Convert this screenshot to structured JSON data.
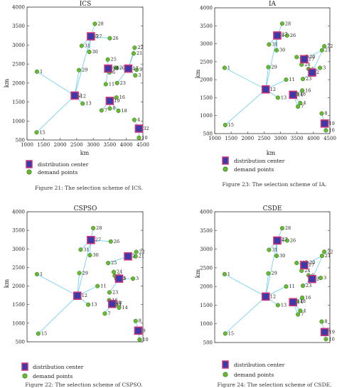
{
  "legend": {
    "dc_label": "distribution center",
    "dp_label": "demand points"
  },
  "colors": {
    "dc_border": "#cc3377",
    "dc_fill": "#3a3aa8",
    "dp_fill": "#66bb33",
    "dp_border": "#2e6b12",
    "link": "#66ccee"
  },
  "captions": {
    "p0": "Figure 21: The selection scheme of ICS.",
    "p1": "Figure 23: The selection scheme of IA.",
    "p2": "Figure 22: The selection scheme of CSPSO.",
    "p3": "Figure 24: The selection scheme of CSDE."
  },
  "chart_data": [
    {
      "type": "scatter",
      "title": "ICS",
      "xlabel": "km",
      "ylabel": "km",
      "xlim": [
        1000,
        4500
      ],
      "ylim": [
        500,
        4000
      ],
      "xticks": [
        1000,
        1500,
        2000,
        2500,
        3000,
        3500,
        4000,
        4500
      ],
      "yticks": [
        500,
        1000,
        1500,
        2000,
        2500,
        3000,
        3500,
        4000
      ],
      "points": [
        {
          "id": "1",
          "x": 1300,
          "y": 2300
        },
        {
          "id": "3",
          "x": 4270,
          "y": 2200
        },
        {
          "id": "4",
          "x": 4240,
          "y": 1030
        },
        {
          "id": "6",
          "x": 3490,
          "y": 2280
        },
        {
          "id": "7",
          "x": 3250,
          "y": 1280
        },
        {
          "id": "8",
          "x": 3500,
          "y": 1330
        },
        {
          "id": "9",
          "x": 4310,
          "y": 2350
        },
        {
          "id": "10",
          "x": 4380,
          "y": 560
        },
        {
          "id": "11",
          "x": 3380,
          "y": 1970
        },
        {
          "id": "12",
          "x": 2520,
          "y": 1650
        },
        {
          "id": "13",
          "x": 2680,
          "y": 1460
        },
        {
          "id": "15",
          "x": 1290,
          "y": 700
        },
        {
          "id": "16",
          "x": 3700,
          "y": 1620
        },
        {
          "id": "18",
          "x": 3760,
          "y": 1270
        },
        {
          "id": "20",
          "x": 3700,
          "y": 2400
        },
        {
          "id": "21",
          "x": 4220,
          "y": 2780
        },
        {
          "id": "22",
          "x": 4250,
          "y": 2930
        },
        {
          "id": "23",
          "x": 3720,
          "y": 2000
        },
        {
          "id": "24",
          "x": 3520,
          "y": 2400
        },
        {
          "id": "25",
          "x": 3440,
          "y": 2620
        },
        {
          "id": "26",
          "x": 3500,
          "y": 3180
        },
        {
          "id": "27",
          "x": 3000,
          "y": 3220
        },
        {
          "id": "28",
          "x": 3050,
          "y": 3560
        },
        {
          "id": "29",
          "x": 2570,
          "y": 2340
        },
        {
          "id": "30",
          "x": 2880,
          "y": 2820
        },
        {
          "id": "31",
          "x": 2650,
          "y": 2980
        }
      ],
      "centers": [
        {
          "id": "2",
          "x": 2440,
          "y": 1670
        },
        {
          "id": "5",
          "x": 2930,
          "y": 3230
        },
        {
          "id": "14",
          "x": 3450,
          "y": 2380
        },
        {
          "id": "17",
          "x": 4060,
          "y": 2380
        },
        {
          "id": "19",
          "x": 3500,
          "y": 1530
        },
        {
          "id": "32",
          "x": 4380,
          "y": 800
        }
      ],
      "links": [
        {
          "from": "2",
          "to": "1"
        },
        {
          "from": "2",
          "to": "15"
        },
        {
          "from": "2",
          "to": "12"
        },
        {
          "from": "2",
          "to": "13"
        },
        {
          "from": "2",
          "to": "29"
        },
        {
          "from": "2",
          "to": "5"
        },
        {
          "from": "5",
          "to": "31"
        },
        {
          "from": "5",
          "to": "30"
        },
        {
          "from": "5",
          "to": "28"
        },
        {
          "from": "5",
          "to": "26"
        },
        {
          "from": "14",
          "to": "25"
        },
        {
          "from": "14",
          "to": "11"
        },
        {
          "from": "14",
          "to": "24"
        },
        {
          "from": "14",
          "to": "6"
        },
        {
          "from": "17",
          "to": "21"
        },
        {
          "from": "17",
          "to": "22"
        },
        {
          "from": "17",
          "to": "3"
        },
        {
          "from": "17",
          "to": "9"
        },
        {
          "from": "17",
          "to": "20"
        },
        {
          "from": "17",
          "to": "23"
        },
        {
          "from": "19",
          "to": "7"
        },
        {
          "from": "19",
          "to": "8"
        },
        {
          "from": "19",
          "to": "16"
        },
        {
          "from": "19",
          "to": "18"
        },
        {
          "from": "32",
          "to": "4"
        },
        {
          "from": "32",
          "to": "10"
        }
      ]
    },
    {
      "type": "scatter",
      "title": "IA",
      "xlabel": "km",
      "ylabel": "km",
      "xlim": [
        1000,
        4500
      ],
      "ylim": [
        500,
        4000
      ],
      "xticks": [
        1000,
        1500,
        2000,
        2500,
        3000,
        3500,
        4000,
        4500
      ],
      "yticks": [
        500,
        1000,
        1500,
        2000,
        2500,
        3000,
        3500,
        4000
      ],
      "points": [
        {
          "id": "1",
          "x": 1300,
          "y": 2330
        },
        {
          "id": "3",
          "x": 4200,
          "y": 2330
        },
        {
          "id": "4",
          "x": 3600,
          "y": 1350
        },
        {
          "id": "6",
          "x": 3850,
          "y": 2300
        },
        {
          "id": "7",
          "x": 3530,
          "y": 1250
        },
        {
          "id": "8",
          "x": 4250,
          "y": 1060
        },
        {
          "id": "9",
          "x": 4340,
          "y": 830
        },
        {
          "id": "10",
          "x": 4380,
          "y": 590
        },
        {
          "id": "11",
          "x": 3170,
          "y": 2000
        },
        {
          "id": "13",
          "x": 2920,
          "y": 1500
        },
        {
          "id": "15",
          "x": 1320,
          "y": 740
        },
        {
          "id": "16",
          "x": 3660,
          "y": 1700
        },
        {
          "id": "18",
          "x": 3500,
          "y": 1600
        },
        {
          "id": "20",
          "x": 3790,
          "y": 2640
        },
        {
          "id": "21",
          "x": 4260,
          "y": 2820
        },
        {
          "id": "22",
          "x": 4330,
          "y": 2930
        },
        {
          "id": "23",
          "x": 3680,
          "y": 2020
        },
        {
          "id": "24",
          "x": 3640,
          "y": 2420
        },
        {
          "id": "25",
          "x": 3490,
          "y": 2630
        },
        {
          "id": "26",
          "x": 3200,
          "y": 3230
        },
        {
          "id": "27",
          "x": 2950,
          "y": 3260
        },
        {
          "id": "28",
          "x": 3050,
          "y": 3560
        },
        {
          "id": "29",
          "x": 2630,
          "y": 2350
        },
        {
          "id": "30",
          "x": 2880,
          "y": 2820
        },
        {
          "id": "31",
          "x": 2650,
          "y": 2980
        }
      ],
      "centers": [
        {
          "id": "2",
          "x": 3960,
          "y": 2200
        },
        {
          "id": "5",
          "x": 2900,
          "y": 3230
        },
        {
          "id": "12",
          "x": 2550,
          "y": 1730
        },
        {
          "id": "14",
          "x": 3380,
          "y": 1580
        },
        {
          "id": "17",
          "x": 3720,
          "y": 2570
        },
        {
          "id": "19",
          "x": 4340,
          "y": 780
        }
      ],
      "links": [
        {
          "from": "12",
          "to": "1"
        },
        {
          "from": "12",
          "to": "15"
        },
        {
          "from": "12",
          "to": "13"
        },
        {
          "from": "12",
          "to": "29"
        },
        {
          "from": "12",
          "to": "11"
        },
        {
          "from": "12",
          "to": "5"
        },
        {
          "from": "5",
          "to": "31"
        },
        {
          "from": "5",
          "to": "30"
        },
        {
          "from": "5",
          "to": "28"
        },
        {
          "from": "5",
          "to": "26"
        },
        {
          "from": "14",
          "to": "16"
        },
        {
          "from": "14",
          "to": "18"
        },
        {
          "from": "14",
          "to": "4"
        },
        {
          "from": "14",
          "to": "7"
        },
        {
          "from": "17",
          "to": "25"
        },
        {
          "from": "17",
          "to": "20"
        },
        {
          "from": "17",
          "to": "24"
        },
        {
          "from": "17",
          "to": "21"
        },
        {
          "from": "2",
          "to": "3"
        },
        {
          "from": "2",
          "to": "6"
        },
        {
          "from": "2",
          "to": "22"
        },
        {
          "from": "2",
          "to": "23"
        },
        {
          "from": "19",
          "to": "8"
        },
        {
          "from": "19",
          "to": "9"
        },
        {
          "from": "19",
          "to": "10"
        }
      ]
    },
    {
      "type": "scatter",
      "title": "CSPSO",
      "xlabel": "",
      "ylabel": "km",
      "xlim": [
        1000,
        4500
      ],
      "ylim": [
        500,
        4000
      ],
      "xticks": [],
      "yticks": [
        500,
        1000,
        1500,
        2000,
        2500,
        3000,
        3500,
        4000
      ],
      "points": [
        {
          "id": "1",
          "x": 1300,
          "y": 2320
        },
        {
          "id": "3",
          "x": 4200,
          "y": 2200
        },
        {
          "id": "4",
          "x": 3680,
          "y": 1500
        },
        {
          "id": "6",
          "x": 3650,
          "y": 2280
        },
        {
          "id": "7",
          "x": 3350,
          "y": 1260
        },
        {
          "id": "8",
          "x": 4280,
          "y": 1060
        },
        {
          "id": "10",
          "x": 4400,
          "y": 560
        },
        {
          "id": "11",
          "x": 3130,
          "y": 2000
        },
        {
          "id": "13",
          "x": 2850,
          "y": 1500
        },
        {
          "id": "14",
          "x": 3780,
          "y": 1420
        },
        {
          "id": "15",
          "x": 1340,
          "y": 720
        },
        {
          "id": "16",
          "x": 3480,
          "y": 1620
        },
        {
          "id": "18",
          "x": 3580,
          "y": 1550
        },
        {
          "id": "20",
          "x": 3700,
          "y": 2200
        },
        {
          "id": "21",
          "x": 4280,
          "y": 2800
        },
        {
          "id": "22",
          "x": 4300,
          "y": 2920
        },
        {
          "id": "23",
          "x": 3490,
          "y": 1830
        },
        {
          "id": "24",
          "x": 3620,
          "y": 2380
        },
        {
          "id": "25",
          "x": 3450,
          "y": 2620
        },
        {
          "id": "26",
          "x": 3530,
          "y": 3200
        },
        {
          "id": "28",
          "x": 3000,
          "y": 3560
        },
        {
          "id": "29",
          "x": 2580,
          "y": 2350
        },
        {
          "id": "30",
          "x": 2900,
          "y": 2830
        },
        {
          "id": "31",
          "x": 2620,
          "y": 2980
        }
      ],
      "centers": [
        {
          "id": "2",
          "x": 4050,
          "y": 2800
        },
        {
          "id": "5",
          "x": 3780,
          "y": 2200
        },
        {
          "id": "9",
          "x": 4360,
          "y": 800
        },
        {
          "id": "12",
          "x": 2520,
          "y": 1740
        },
        {
          "id": "17",
          "x": 3570,
          "y": 1520
        },
        {
          "id": "27",
          "x": 2930,
          "y": 3240
        }
      ],
      "links": [
        {
          "from": "12",
          "to": "1"
        },
        {
          "from": "12",
          "to": "15"
        },
        {
          "from": "12",
          "to": "13"
        },
        {
          "from": "12",
          "to": "29"
        },
        {
          "from": "12",
          "to": "11"
        },
        {
          "from": "12",
          "to": "27"
        },
        {
          "from": "27",
          "to": "31"
        },
        {
          "from": "27",
          "to": "30"
        },
        {
          "from": "27",
          "to": "28"
        },
        {
          "from": "27",
          "to": "26"
        },
        {
          "from": "5",
          "to": "6"
        },
        {
          "from": "5",
          "to": "20"
        },
        {
          "from": "5",
          "to": "24"
        },
        {
          "from": "5",
          "to": "3"
        },
        {
          "from": "5",
          "to": "23"
        },
        {
          "from": "2",
          "to": "21"
        },
        {
          "from": "2",
          "to": "22"
        },
        {
          "from": "2",
          "to": "25"
        },
        {
          "from": "17",
          "to": "16"
        },
        {
          "from": "17",
          "to": "18"
        },
        {
          "from": "17",
          "to": "4"
        },
        {
          "from": "17",
          "to": "14"
        },
        {
          "from": "17",
          "to": "7"
        },
        {
          "from": "9",
          "to": "8"
        },
        {
          "from": "9",
          "to": "10"
        }
      ]
    },
    {
      "type": "scatter",
      "title": "CSDE",
      "xlabel": "",
      "ylabel": "km",
      "xlim": [
        1000,
        4500
      ],
      "ylim": [
        500,
        4000
      ],
      "xticks": [],
      "yticks": [
        500,
        1000,
        1500,
        2000,
        2500,
        3000,
        3500,
        4000
      ],
      "points": [
        {
          "id": "1",
          "x": 1300,
          "y": 2330
        },
        {
          "id": "3",
          "x": 4220,
          "y": 2230
        },
        {
          "id": "4",
          "x": 3600,
          "y": 1350
        },
        {
          "id": "6",
          "x": 3850,
          "y": 2300
        },
        {
          "id": "7",
          "x": 3530,
          "y": 1250
        },
        {
          "id": "8",
          "x": 4250,
          "y": 1060
        },
        {
          "id": "9",
          "x": 4340,
          "y": 830
        },
        {
          "id": "10",
          "x": 4380,
          "y": 590
        },
        {
          "id": "11",
          "x": 3170,
          "y": 2000
        },
        {
          "id": "13",
          "x": 2920,
          "y": 1500
        },
        {
          "id": "15",
          "x": 1320,
          "y": 740
        },
        {
          "id": "16",
          "x": 3660,
          "y": 1700
        },
        {
          "id": "18",
          "x": 3500,
          "y": 1600
        },
        {
          "id": "20",
          "x": 3790,
          "y": 2640
        },
        {
          "id": "21",
          "x": 4260,
          "y": 2820
        },
        {
          "id": "22",
          "x": 4330,
          "y": 2930
        },
        {
          "id": "23",
          "x": 3680,
          "y": 2020
        },
        {
          "id": "24",
          "x": 3640,
          "y": 2420
        },
        {
          "id": "25",
          "x": 3490,
          "y": 2630
        },
        {
          "id": "26",
          "x": 3200,
          "y": 3230
        },
        {
          "id": "27",
          "x": 2950,
          "y": 3260
        },
        {
          "id": "28",
          "x": 3050,
          "y": 3560
        },
        {
          "id": "29",
          "x": 2630,
          "y": 2350
        },
        {
          "id": "30",
          "x": 2880,
          "y": 2820
        },
        {
          "id": "31",
          "x": 2650,
          "y": 2980
        }
      ],
      "centers": [
        {
          "id": "2",
          "x": 3960,
          "y": 2200
        },
        {
          "id": "5",
          "x": 2900,
          "y": 3230
        },
        {
          "id": "12",
          "x": 2550,
          "y": 1730
        },
        {
          "id": "14",
          "x": 3380,
          "y": 1580
        },
        {
          "id": "17",
          "x": 3720,
          "y": 2570
        },
        {
          "id": "19",
          "x": 4340,
          "y": 780
        }
      ],
      "links": [
        {
          "from": "12",
          "to": "1"
        },
        {
          "from": "12",
          "to": "15"
        },
        {
          "from": "12",
          "to": "13"
        },
        {
          "from": "12",
          "to": "29"
        },
        {
          "from": "12",
          "to": "11"
        },
        {
          "from": "12",
          "to": "5"
        },
        {
          "from": "5",
          "to": "31"
        },
        {
          "from": "5",
          "to": "30"
        },
        {
          "from": "5",
          "to": "28"
        },
        {
          "from": "5",
          "to": "26"
        },
        {
          "from": "14",
          "to": "16"
        },
        {
          "from": "14",
          "to": "18"
        },
        {
          "from": "14",
          "to": "4"
        },
        {
          "from": "14",
          "to": "7"
        },
        {
          "from": "17",
          "to": "25"
        },
        {
          "from": "17",
          "to": "20"
        },
        {
          "from": "17",
          "to": "24"
        },
        {
          "from": "17",
          "to": "21"
        },
        {
          "from": "2",
          "to": "3"
        },
        {
          "from": "2",
          "to": "6"
        },
        {
          "from": "2",
          "to": "22"
        },
        {
          "from": "2",
          "to": "23"
        },
        {
          "from": "19",
          "to": "8"
        },
        {
          "from": "19",
          "to": "9"
        },
        {
          "from": "19",
          "to": "10"
        }
      ]
    }
  ]
}
